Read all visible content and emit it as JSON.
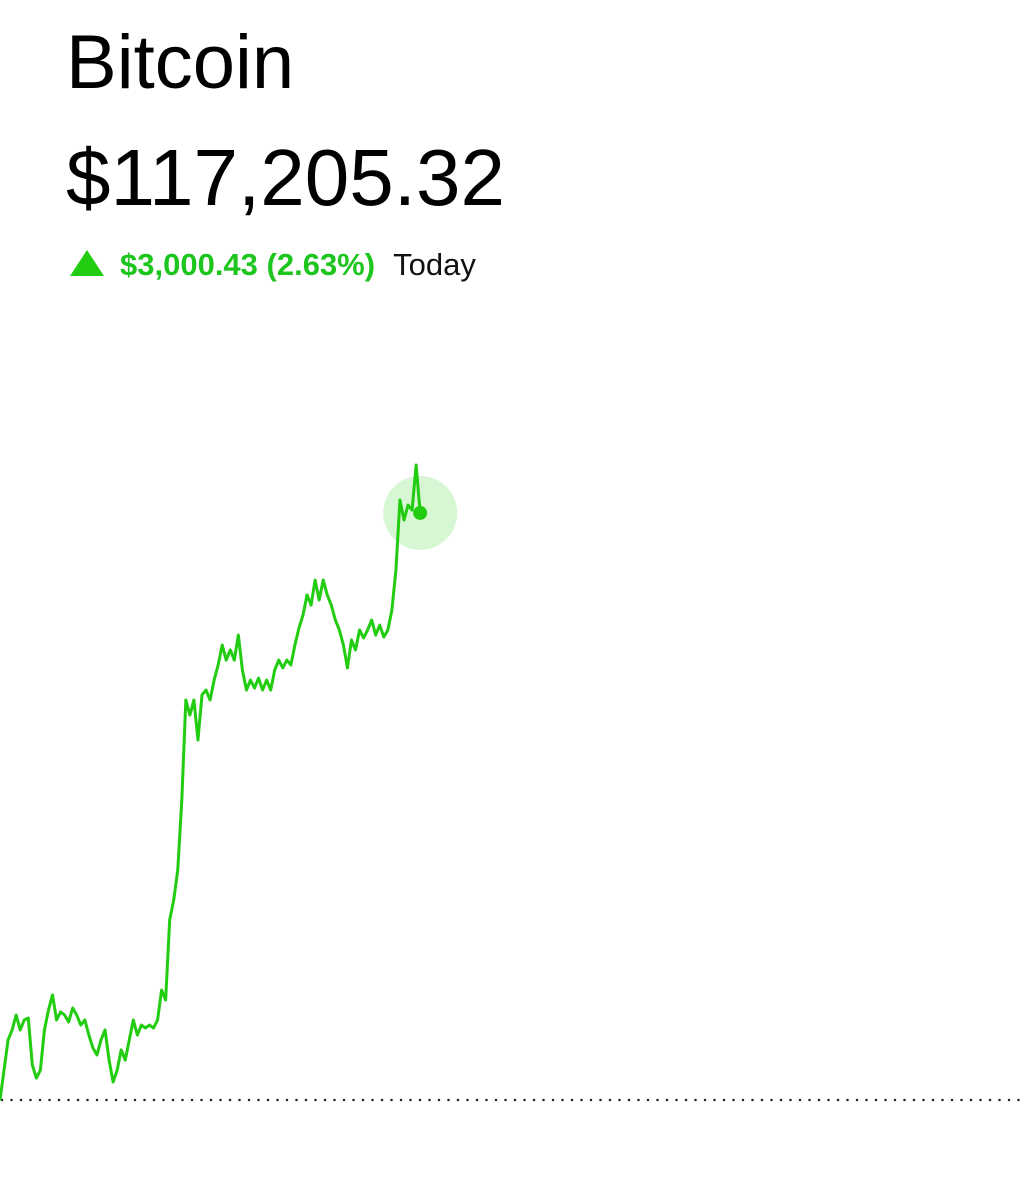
{
  "header": {
    "title": "Bitcoin",
    "price": "$117,205.32",
    "change": "$3,000.43 (2.63%)",
    "period": "Today"
  },
  "chart_data": {
    "type": "line",
    "color": "#22cc11",
    "values": [
      114205,
      114358,
      114512,
      114563,
      114639,
      114563,
      114614,
      114624,
      114384,
      114317,
      114358,
      114563,
      114665,
      114742,
      114614,
      114655,
      114639,
      114604,
      114675,
      114639,
      114588,
      114614,
      114537,
      114471,
      114435,
      114512,
      114563,
      114409,
      114297,
      114358,
      114461,
      114409,
      114512,
      114614,
      114537,
      114588,
      114573,
      114588,
      114573,
      114614,
      114767,
      114716,
      115125,
      115227,
      115380,
      115738,
      116249,
      116172,
      116249,
      116045,
      116275,
      116300,
      116249,
      116351,
      116428,
      116530,
      116453,
      116505,
      116453,
      116581,
      116402,
      116300,
      116351,
      116310,
      116361,
      116300,
      116351,
      116300,
      116402,
      116453,
      116413,
      116453,
      116428,
      116530,
      116617,
      116683,
      116786,
      116734,
      116862,
      116760,
      116862,
      116786,
      116734,
      116658,
      116607,
      116530,
      116413,
      116556,
      116505,
      116607,
      116566,
      116607,
      116658,
      116581,
      116632,
      116571,
      116607,
      116709,
      116913,
      117271,
      117169,
      117245,
      117220,
      117450,
      117205.32
    ],
    "ylim": [
      113694,
      118140
    ],
    "reference_line": 114204.89
  }
}
